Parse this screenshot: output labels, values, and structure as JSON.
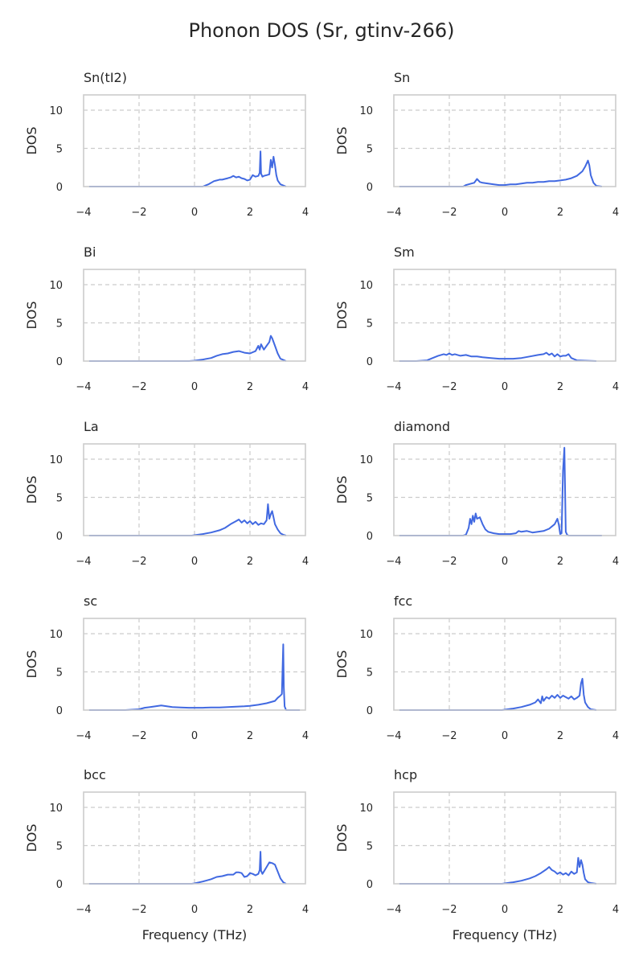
{
  "figure": {
    "title": "Phonon DOS (Sr, gtinv-266)"
  },
  "chart_data": [
    {
      "type": "line",
      "title": "Sn(tI2)",
      "ylabel": "DOS",
      "xlabel": "",
      "xlim": [
        -4,
        4
      ],
      "ylim": [
        0,
        12
      ],
      "xticks": [
        -4,
        -2,
        0,
        2,
        4
      ],
      "yticks": [
        0,
        5,
        10
      ],
      "grid": true,
      "x": [
        -3.8,
        0.3,
        0.5,
        0.6,
        0.7,
        0.8,
        0.9,
        1.0,
        1.1,
        1.2,
        1.3,
        1.4,
        1.5,
        1.6,
        1.7,
        1.8,
        1.9,
        2.0,
        2.1,
        2.2,
        2.3,
        2.35,
        2.38,
        2.4,
        2.45,
        2.5,
        2.6,
        2.7,
        2.75,
        2.8,
        2.85,
        2.9,
        2.95,
        3.0,
        3.1,
        3.3
      ],
      "y": [
        0,
        0,
        0.3,
        0.5,
        0.7,
        0.8,
        0.9,
        0.9,
        1.0,
        1.1,
        1.2,
        1.4,
        1.2,
        1.3,
        1.1,
        1.0,
        0.8,
        0.9,
        1.5,
        1.3,
        1.4,
        1.8,
        4.6,
        1.7,
        1.3,
        1.4,
        1.5,
        1.6,
        3.5,
        2.5,
        3.9,
        2.8,
        1.5,
        0.8,
        0.3,
        0
      ]
    },
    {
      "type": "line",
      "title": "Sn",
      "ylabel": "DOS",
      "xlabel": "",
      "xlim": [
        -4,
        4
      ],
      "ylim": [
        0,
        12
      ],
      "xticks": [
        -4,
        -2,
        0,
        2,
        4
      ],
      "yticks": [
        0,
        5,
        10
      ],
      "grid": true,
      "x": [
        -3.8,
        -1.5,
        -1.4,
        -1.3,
        -1.2,
        -1.1,
        -1.0,
        -0.9,
        -0.8,
        -0.6,
        -0.4,
        -0.2,
        0.0,
        0.2,
        0.4,
        0.6,
        0.8,
        1.0,
        1.2,
        1.4,
        1.6,
        1.8,
        2.0,
        2.2,
        2.4,
        2.6,
        2.8,
        2.9,
        3.0,
        3.05,
        3.1,
        3.2,
        3.3,
        3.5
      ],
      "y": [
        0,
        0,
        0.2,
        0.3,
        0.4,
        0.5,
        1.0,
        0.6,
        0.5,
        0.4,
        0.3,
        0.2,
        0.2,
        0.3,
        0.3,
        0.4,
        0.5,
        0.5,
        0.6,
        0.6,
        0.7,
        0.7,
        0.8,
        0.9,
        1.1,
        1.4,
        2.0,
        2.6,
        3.4,
        2.8,
        1.5,
        0.5,
        0.1,
        0
      ]
    },
    {
      "type": "line",
      "title": "Bi",
      "ylabel": "DOS",
      "xlabel": "",
      "xlim": [
        -4,
        4
      ],
      "ylim": [
        0,
        12
      ],
      "xticks": [
        -4,
        -2,
        0,
        2,
        4
      ],
      "yticks": [
        0,
        5,
        10
      ],
      "grid": true,
      "x": [
        -3.8,
        -0.2,
        0.0,
        0.3,
        0.6,
        0.8,
        1.0,
        1.2,
        1.4,
        1.6,
        1.8,
        2.0,
        2.2,
        2.3,
        2.35,
        2.4,
        2.5,
        2.6,
        2.7,
        2.75,
        2.8,
        2.9,
        3.0,
        3.1,
        3.3
      ],
      "y": [
        0,
        0,
        0.05,
        0.2,
        0.4,
        0.7,
        0.9,
        1.0,
        1.2,
        1.3,
        1.1,
        1.0,
        1.3,
        2.0,
        1.5,
        2.2,
        1.5,
        2.0,
        2.5,
        3.3,
        3.0,
        2.0,
        1.0,
        0.3,
        0
      ]
    },
    {
      "type": "line",
      "title": "Sm",
      "ylabel": "DOS",
      "xlabel": "",
      "xlim": [
        -4,
        4
      ],
      "ylim": [
        0,
        12
      ],
      "xticks": [
        -4,
        -2,
        0,
        2,
        4
      ],
      "yticks": [
        0,
        5,
        10
      ],
      "grid": true,
      "x": [
        -3.8,
        -3.2,
        -2.8,
        -2.6,
        -2.4,
        -2.2,
        -2.1,
        -2.0,
        -1.9,
        -1.8,
        -1.6,
        -1.4,
        -1.2,
        -1.0,
        -0.8,
        -0.5,
        -0.2,
        0.0,
        0.3,
        0.6,
        0.9,
        1.2,
        1.4,
        1.5,
        1.6,
        1.7,
        1.8,
        1.9,
        2.0,
        2.1,
        2.2,
        2.3,
        2.4,
        2.6,
        3.3
      ],
      "y": [
        0,
        0,
        0.1,
        0.4,
        0.7,
        0.9,
        0.8,
        1.0,
        0.8,
        0.9,
        0.7,
        0.8,
        0.6,
        0.6,
        0.5,
        0.4,
        0.3,
        0.3,
        0.3,
        0.4,
        0.6,
        0.8,
        0.9,
        1.1,
        0.8,
        1.0,
        0.6,
        0.9,
        0.6,
        0.7,
        0.7,
        0.9,
        0.4,
        0.1,
        0
      ]
    },
    {
      "type": "line",
      "title": "La",
      "ylabel": "DOS",
      "xlabel": "",
      "xlim": [
        -4,
        4
      ],
      "ylim": [
        0,
        12
      ],
      "xticks": [
        -4,
        -2,
        0,
        2,
        4
      ],
      "yticks": [
        0,
        5,
        10
      ],
      "grid": true,
      "x": [
        -3.8,
        -0.1,
        0.0,
        0.3,
        0.6,
        0.9,
        1.1,
        1.3,
        1.5,
        1.6,
        1.7,
        1.8,
        1.9,
        2.0,
        2.1,
        2.2,
        2.3,
        2.4,
        2.5,
        2.6,
        2.65,
        2.7,
        2.75,
        2.8,
        2.85,
        2.9,
        3.0,
        3.1,
        3.2,
        3.3
      ],
      "y": [
        0,
        0,
        0.05,
        0.2,
        0.4,
        0.7,
        1.0,
        1.5,
        1.9,
        2.1,
        1.7,
        2.0,
        1.6,
        1.9,
        1.5,
        1.8,
        1.4,
        1.6,
        1.5,
        2.0,
        4.1,
        2.2,
        2.8,
        3.2,
        2.4,
        1.5,
        0.8,
        0.3,
        0.1,
        0
      ]
    },
    {
      "type": "line",
      "title": "diamond",
      "ylabel": "DOS",
      "xlabel": "",
      "xlim": [
        -4,
        4
      ],
      "ylim": [
        0,
        12
      ],
      "xticks": [
        -4,
        -2,
        0,
        2,
        4
      ],
      "yticks": [
        0,
        5,
        10
      ],
      "grid": true,
      "x": [
        -3.8,
        -1.5,
        -1.4,
        -1.3,
        -1.25,
        -1.2,
        -1.15,
        -1.1,
        -1.05,
        -1.0,
        -0.9,
        -0.8,
        -0.7,
        -0.6,
        -0.4,
        -0.2,
        0.0,
        0.2,
        0.4,
        0.5,
        0.6,
        0.8,
        1.0,
        1.2,
        1.4,
        1.6,
        1.8,
        1.9,
        1.95,
        2.0,
        2.05,
        2.1,
        2.15,
        2.2,
        2.25,
        2.3,
        2.5,
        3.5
      ],
      "y": [
        0,
        0,
        0.1,
        1.0,
        2.2,
        1.5,
        2.6,
        1.8,
        2.9,
        2.2,
        2.4,
        1.5,
        0.8,
        0.5,
        0.3,
        0.2,
        0.2,
        0.2,
        0.3,
        0.6,
        0.5,
        0.6,
        0.4,
        0.5,
        0.6,
        0.9,
        1.5,
        2.2,
        1.4,
        0.2,
        0.3,
        8.5,
        11.5,
        0.5,
        0.1,
        0,
        0,
        0
      ]
    },
    {
      "type": "line",
      "title": "sc",
      "ylabel": "DOS",
      "xlabel": "",
      "xlim": [
        -4,
        4
      ],
      "ylim": [
        0,
        12
      ],
      "xticks": [
        -4,
        -2,
        0,
        2,
        4
      ],
      "yticks": [
        0,
        5,
        10
      ],
      "grid": true,
      "x": [
        -3.8,
        -2.5,
        -2.0,
        -1.8,
        -1.6,
        -1.4,
        -1.2,
        -1.0,
        -0.8,
        -0.5,
        -0.2,
        0.0,
        0.3,
        0.6,
        0.9,
        1.2,
        1.5,
        1.8,
        2.0,
        2.3,
        2.6,
        2.9,
        3.0,
        3.1,
        3.15,
        3.2,
        3.22,
        3.25,
        3.3,
        3.5,
        3.8
      ],
      "y": [
        0,
        0,
        0.1,
        0.3,
        0.4,
        0.5,
        0.6,
        0.5,
        0.4,
        0.35,
        0.3,
        0.3,
        0.3,
        0.35,
        0.35,
        0.4,
        0.45,
        0.5,
        0.55,
        0.7,
        0.9,
        1.2,
        1.6,
        1.9,
        2.1,
        8.6,
        3.0,
        0.5,
        0,
        0,
        0
      ]
    },
    {
      "type": "line",
      "title": "fcc",
      "ylabel": "DOS",
      "xlabel": "",
      "xlim": [
        -4,
        4
      ],
      "ylim": [
        0,
        12
      ],
      "xticks": [
        -4,
        -2,
        0,
        2,
        4
      ],
      "yticks": [
        0,
        5,
        10
      ],
      "grid": true,
      "x": [
        -3.8,
        -0.1,
        0.0,
        0.3,
        0.6,
        0.9,
        1.1,
        1.2,
        1.3,
        1.35,
        1.4,
        1.5,
        1.6,
        1.7,
        1.8,
        1.9,
        2.0,
        2.1,
        2.2,
        2.3,
        2.4,
        2.5,
        2.6,
        2.7,
        2.75,
        2.8,
        2.85,
        2.9,
        3.0,
        3.1,
        3.3
      ],
      "y": [
        0,
        0,
        0.05,
        0.2,
        0.4,
        0.7,
        1.0,
        1.4,
        0.9,
        1.8,
        1.2,
        1.7,
        1.5,
        1.9,
        1.6,
        2.0,
        1.6,
        1.9,
        1.7,
        1.5,
        1.8,
        1.4,
        1.6,
        1.9,
        3.5,
        4.1,
        2.0,
        1.0,
        0.4,
        0.1,
        0
      ]
    },
    {
      "type": "line",
      "title": "bcc",
      "ylabel": "DOS",
      "xlabel": "Frequency (THz)",
      "xlim": [
        -4,
        4
      ],
      "ylim": [
        0,
        12
      ],
      "xticks": [
        -4,
        -2,
        0,
        2,
        4
      ],
      "yticks": [
        0,
        5,
        10
      ],
      "grid": true,
      "x": [
        -3.8,
        -0.1,
        0.0,
        0.3,
        0.6,
        0.8,
        1.0,
        1.2,
        1.4,
        1.5,
        1.6,
        1.7,
        1.8,
        1.9,
        2.0,
        2.1,
        2.2,
        2.3,
        2.35,
        2.38,
        2.4,
        2.45,
        2.5,
        2.6,
        2.7,
        2.8,
        2.9,
        3.0,
        3.1,
        3.2,
        3.3
      ],
      "y": [
        0,
        0,
        0.05,
        0.3,
        0.6,
        0.9,
        1.0,
        1.2,
        1.2,
        1.5,
        1.5,
        1.4,
        0.9,
        1.0,
        1.4,
        1.3,
        1.1,
        1.3,
        1.8,
        4.2,
        1.7,
        1.3,
        1.6,
        2.2,
        2.8,
        2.7,
        2.5,
        1.6,
        0.7,
        0.2,
        0
      ]
    },
    {
      "type": "line",
      "title": "hcp",
      "ylabel": "DOS",
      "xlabel": "Frequency (THz)",
      "xlim": [
        -4,
        4
      ],
      "ylim": [
        0,
        12
      ],
      "xticks": [
        -4,
        -2,
        0,
        2,
        4
      ],
      "yticks": [
        0,
        5,
        10
      ],
      "grid": true,
      "x": [
        -3.8,
        -0.1,
        0.0,
        0.3,
        0.6,
        0.9,
        1.1,
        1.3,
        1.5,
        1.6,
        1.7,
        1.8,
        1.9,
        2.0,
        2.1,
        2.2,
        2.3,
        2.4,
        2.5,
        2.6,
        2.65,
        2.7,
        2.75,
        2.8,
        2.85,
        2.9,
        3.0,
        3.1,
        3.3
      ],
      "y": [
        0,
        0,
        0.05,
        0.2,
        0.4,
        0.7,
        1.0,
        1.4,
        1.9,
        2.2,
        1.8,
        1.6,
        1.3,
        1.5,
        1.2,
        1.4,
        1.1,
        1.6,
        1.3,
        1.5,
        3.4,
        2.2,
        3.1,
        2.5,
        1.4,
        0.6,
        0.2,
        0.1,
        0
      ]
    }
  ],
  "colors": {
    "line": "#4169e1",
    "axis": "#cccccc",
    "grid": "#cccccc",
    "text": "#262626"
  }
}
